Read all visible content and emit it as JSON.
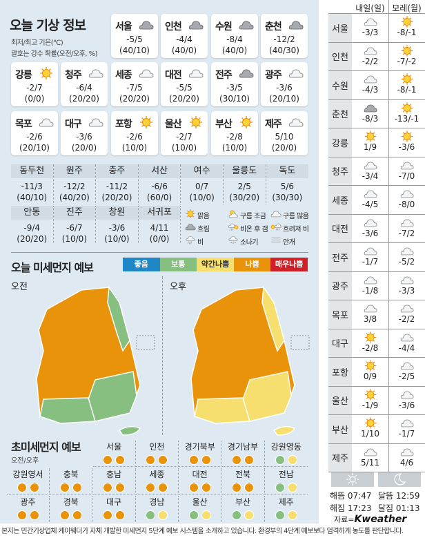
{
  "title": "오늘 기상 정보",
  "subtitle1": "최저/최고 기온(℃)",
  "subtitle2": "괄호는 강수 확률(오전/오후, %)",
  "cities": [
    {
      "name": "서울",
      "icon": "cloud-dark",
      "temp": "-5/5",
      "prob": "(40/10)"
    },
    {
      "name": "인천",
      "icon": "cloud-dark",
      "temp": "-4/4",
      "prob": "(40/0)"
    },
    {
      "name": "수원",
      "icon": "cloud-dark",
      "temp": "-8/4",
      "prob": "(40/0)"
    },
    {
      "name": "춘천",
      "icon": "cloud-dark",
      "temp": "-12/2",
      "prob": "(40/30)"
    },
    {
      "name": "강릉",
      "icon": "sun",
      "temp": "-2/7",
      "prob": "(0/0)"
    },
    {
      "name": "청주",
      "icon": "cloud",
      "temp": "-6/4",
      "prob": "(20/20)"
    },
    {
      "name": "세종",
      "icon": "cloud",
      "temp": "-7/5",
      "prob": "(20/20)"
    },
    {
      "name": "대전",
      "icon": "cloud",
      "temp": "-5/5",
      "prob": "(20/20)"
    },
    {
      "name": "전주",
      "icon": "cloud-dark",
      "temp": "-3/5",
      "prob": "(30/10)"
    },
    {
      "name": "광주",
      "icon": "cloud",
      "temp": "-3/6",
      "prob": "(20/10)"
    },
    {
      "name": "목포",
      "icon": "cloud",
      "temp": "-2/6",
      "prob": "(20/10)"
    },
    {
      "name": "대구",
      "icon": "cloud",
      "temp": "-3/6",
      "prob": "(20/0)"
    },
    {
      "name": "포항",
      "icon": "sun",
      "temp": "-2/6",
      "prob": "(10/0)"
    },
    {
      "name": "울산",
      "icon": "sun",
      "temp": "-2/7",
      "prob": "(10/0)"
    },
    {
      "name": "부산",
      "icon": "sun",
      "temp": "-2/8",
      "prob": "(10/0)"
    },
    {
      "name": "제주",
      "icon": "cloud",
      "temp": "5/10",
      "prob": "(20/0)"
    }
  ],
  "table": [
    {
      "name": "동두천",
      "temp": "-11/3",
      "prob": "(40/10)"
    },
    {
      "name": "원주",
      "temp": "-12/2",
      "prob": "(40/20)"
    },
    {
      "name": "충주",
      "temp": "-11/2",
      "prob": "(20/20)"
    },
    {
      "name": "서산",
      "temp": "-6/6",
      "prob": "(60/0)"
    },
    {
      "name": "여수",
      "temp": "0/7",
      "prob": "(10/0)"
    },
    {
      "name": "울릉도",
      "temp": "2/5",
      "prob": "(30/20)"
    },
    {
      "name": "독도",
      "temp": "5/6",
      "prob": "(30/30)"
    },
    {
      "name": "안동",
      "temp": "-9/4",
      "prob": "(20/20)"
    },
    {
      "name": "진주",
      "temp": "-6/7",
      "prob": "(10/0)"
    },
    {
      "name": "창원",
      "temp": "-3/6",
      "prob": "(10/0)"
    },
    {
      "name": "서귀포",
      "temp": "4/11",
      "prob": "(0/0)"
    }
  ],
  "legend": [
    {
      "icon": "sun",
      "label": "맑음"
    },
    {
      "icon": "sun-cloud",
      "label": "구름 조금"
    },
    {
      "icon": "cloud",
      "label": "구름 많음"
    },
    {
      "icon": "cloud-dark",
      "label": "흐림"
    },
    {
      "icon": "rain-sun",
      "label": "비온 후 갬"
    },
    {
      "icon": "sun-rain",
      "label": "흐려져 비"
    },
    {
      "icon": "rain",
      "label": "비"
    },
    {
      "icon": "shower",
      "label": "소나기"
    },
    {
      "icon": "fog",
      "label": "안개"
    }
  ],
  "pm": {
    "title": "오늘 미세먼지 예보",
    "am": "오전",
    "pm": "오후",
    "levels": [
      {
        "label": "좋음",
        "color": "#1f87c6"
      },
      {
        "label": "보통",
        "color": "#86bf7f"
      },
      {
        "label": "약간나쁨",
        "color": "#f6df6f"
      },
      {
        "label": "나쁨",
        "color": "#e8930a"
      },
      {
        "label": "매우나쁨",
        "color": "#cf2027"
      }
    ]
  },
  "ultra": {
    "title": "초미세먼지 예보",
    "sub": "오전/오후",
    "regions": [
      {
        "name": "서울",
        "am": "#e8930a",
        "pm": "#e8930a"
      },
      {
        "name": "인천",
        "am": "#e8930a",
        "pm": "#e8930a"
      },
      {
        "name": "경기북부",
        "am": "#e8930a",
        "pm": "#e8930a"
      },
      {
        "name": "경기남부",
        "am": "#e8930a",
        "pm": "#e8930a"
      },
      {
        "name": "강원영동",
        "am": "#86bf7f",
        "pm": "#f6df6f"
      },
      {
        "name": "강원영서",
        "am": "#e8930a",
        "pm": "#e8930a"
      },
      {
        "name": "충북",
        "am": "#e8930a",
        "pm": "#e8930a"
      },
      {
        "name": "충남",
        "am": "#e8930a",
        "pm": "#e8930a"
      },
      {
        "name": "세종",
        "am": "#e8930a",
        "pm": "#e8930a"
      },
      {
        "name": "대전",
        "am": "#e8930a",
        "pm": "#e8930a"
      },
      {
        "name": "전북",
        "am": "#e8930a",
        "pm": "#e8930a"
      },
      {
        "name": "전남",
        "am": "#86bf7f",
        "pm": "#f6df6f"
      },
      {
        "name": "광주",
        "am": "#e8930a",
        "pm": "#e8930a"
      },
      {
        "name": "경북",
        "am": "#e8930a",
        "pm": "#e8930a"
      },
      {
        "name": "대구",
        "am": "#e8930a",
        "pm": "#e8930a"
      },
      {
        "name": "경남",
        "am": "#86bf7f",
        "pm": "#f6df6f"
      },
      {
        "name": "울산",
        "am": "#86bf7f",
        "pm": "#f6df6f"
      },
      {
        "name": "부산",
        "am": "#86bf7f",
        "pm": "#f6df6f"
      },
      {
        "name": "제주",
        "am": "#86bf7f",
        "pm": "#f6df6f"
      }
    ]
  },
  "forecast": {
    "col1": "내일(일)",
    "col2": "모레(월)",
    "rows": [
      {
        "name": "서울",
        "d1": {
          "icon": "cloud",
          "t": "-3/3"
        },
        "d2": {
          "icon": "sun",
          "t": "-8/-1"
        }
      },
      {
        "name": "인천",
        "d1": {
          "icon": "cloud",
          "t": "-2/2"
        },
        "d2": {
          "icon": "sun",
          "t": "-7/-2"
        }
      },
      {
        "name": "수원",
        "d1": {
          "icon": "cloud",
          "t": "-4/3"
        },
        "d2": {
          "icon": "sun",
          "t": "-8/-1"
        }
      },
      {
        "name": "춘천",
        "d1": {
          "icon": "cloud-dark",
          "t": "-8/3"
        },
        "d2": {
          "icon": "sun",
          "t": "-13/-1"
        }
      },
      {
        "name": "강릉",
        "d1": {
          "icon": "sun",
          "t": "1/9"
        },
        "d2": {
          "icon": "sun",
          "t": "-3/6"
        }
      },
      {
        "name": "청주",
        "d1": {
          "icon": "cloud",
          "t": "-3/4"
        },
        "d2": {
          "icon": "cloud",
          "t": "-7/0"
        }
      },
      {
        "name": "세종",
        "d1": {
          "icon": "cloud",
          "t": "-4/5"
        },
        "d2": {
          "icon": "cloud",
          "t": "-8/0"
        }
      },
      {
        "name": "대전",
        "d1": {
          "icon": "cloud",
          "t": "-3/6"
        },
        "d2": {
          "icon": "cloud",
          "t": "-7/2"
        }
      },
      {
        "name": "전주",
        "d1": {
          "icon": "cloud",
          "t": "-1/7"
        },
        "d2": {
          "icon": "cloud",
          "t": "-5/2"
        }
      },
      {
        "name": "광주",
        "d1": {
          "icon": "cloud",
          "t": "-1/8"
        },
        "d2": {
          "icon": "cloud",
          "t": "-3/3"
        }
      },
      {
        "name": "목포",
        "d1": {
          "icon": "cloud",
          "t": "3/8"
        },
        "d2": {
          "icon": "cloud",
          "t": "-2/2"
        }
      },
      {
        "name": "대구",
        "d1": {
          "icon": "sun",
          "t": "-2/8"
        },
        "d2": {
          "icon": "cloud",
          "t": "-4/4"
        }
      },
      {
        "name": "포항",
        "d1": {
          "icon": "sun",
          "t": "0/9"
        },
        "d2": {
          "icon": "cloud",
          "t": "-2/5"
        }
      },
      {
        "name": "울산",
        "d1": {
          "icon": "sun",
          "t": "-1/9"
        },
        "d2": {
          "icon": "cloud",
          "t": "-3/6"
        }
      },
      {
        "name": "부산",
        "d1": {
          "icon": "sun",
          "t": "1/10"
        },
        "d2": {
          "icon": "cloud",
          "t": "-1/7"
        }
      },
      {
        "name": "제주",
        "d1": {
          "icon": "cloud",
          "t": "5/11"
        },
        "d2": {
          "icon": "cloud",
          "t": "4/6"
        }
      }
    ]
  },
  "sun": {
    "rise": "해뜸 07:47",
    "set": "해짐 17:23"
  },
  "moon": {
    "rise": "달뜸 12:59",
    "set": "달짐 01:13"
  },
  "source": "자료=",
  "brand": "Kweather",
  "footer": "본지는 민간기상업체 케이웨더가 자체 개발한 미세먼지 5단계 예보 시스템을 소개하고 있습니다. 환경부의 4단계 예보보다 엄격하게 농도를 판단합니다."
}
